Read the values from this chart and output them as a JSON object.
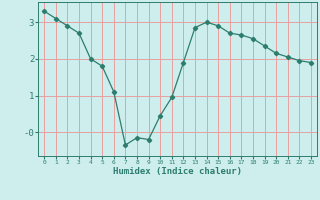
{
  "xlabel": "Humidex (Indice chaleur)",
  "ylabel": "",
  "x_values": [
    0,
    1,
    2,
    3,
    4,
    5,
    6,
    7,
    8,
    9,
    10,
    11,
    12,
    13,
    14,
    15,
    16,
    17,
    18,
    19,
    20,
    21,
    22,
    23
  ],
  "y_values": [
    3.3,
    3.1,
    2.9,
    2.7,
    2.0,
    1.8,
    1.1,
    -0.35,
    -0.15,
    -0.2,
    0.45,
    0.95,
    1.9,
    2.85,
    3.0,
    2.9,
    2.7,
    2.65,
    2.55,
    2.35,
    2.15,
    2.05,
    1.95,
    1.9
  ],
  "line_color": "#2d7d6e",
  "marker": "D",
  "marker_size": 2.2,
  "bg_color": "#ceeeed",
  "grid_color": "#e8a0a0",
  "ylim": [
    -0.65,
    3.55
  ],
  "yticks": [
    0,
    1,
    2,
    3
  ],
  "ytick_labels": [
    "-0",
    "1",
    "2",
    "3"
  ],
  "xlim": [
    -0.5,
    23.5
  ],
  "xticks": [
    0,
    1,
    2,
    3,
    4,
    5,
    6,
    7,
    8,
    9,
    10,
    11,
    12,
    13,
    14,
    15,
    16,
    17,
    18,
    19,
    20,
    21,
    22,
    23
  ]
}
